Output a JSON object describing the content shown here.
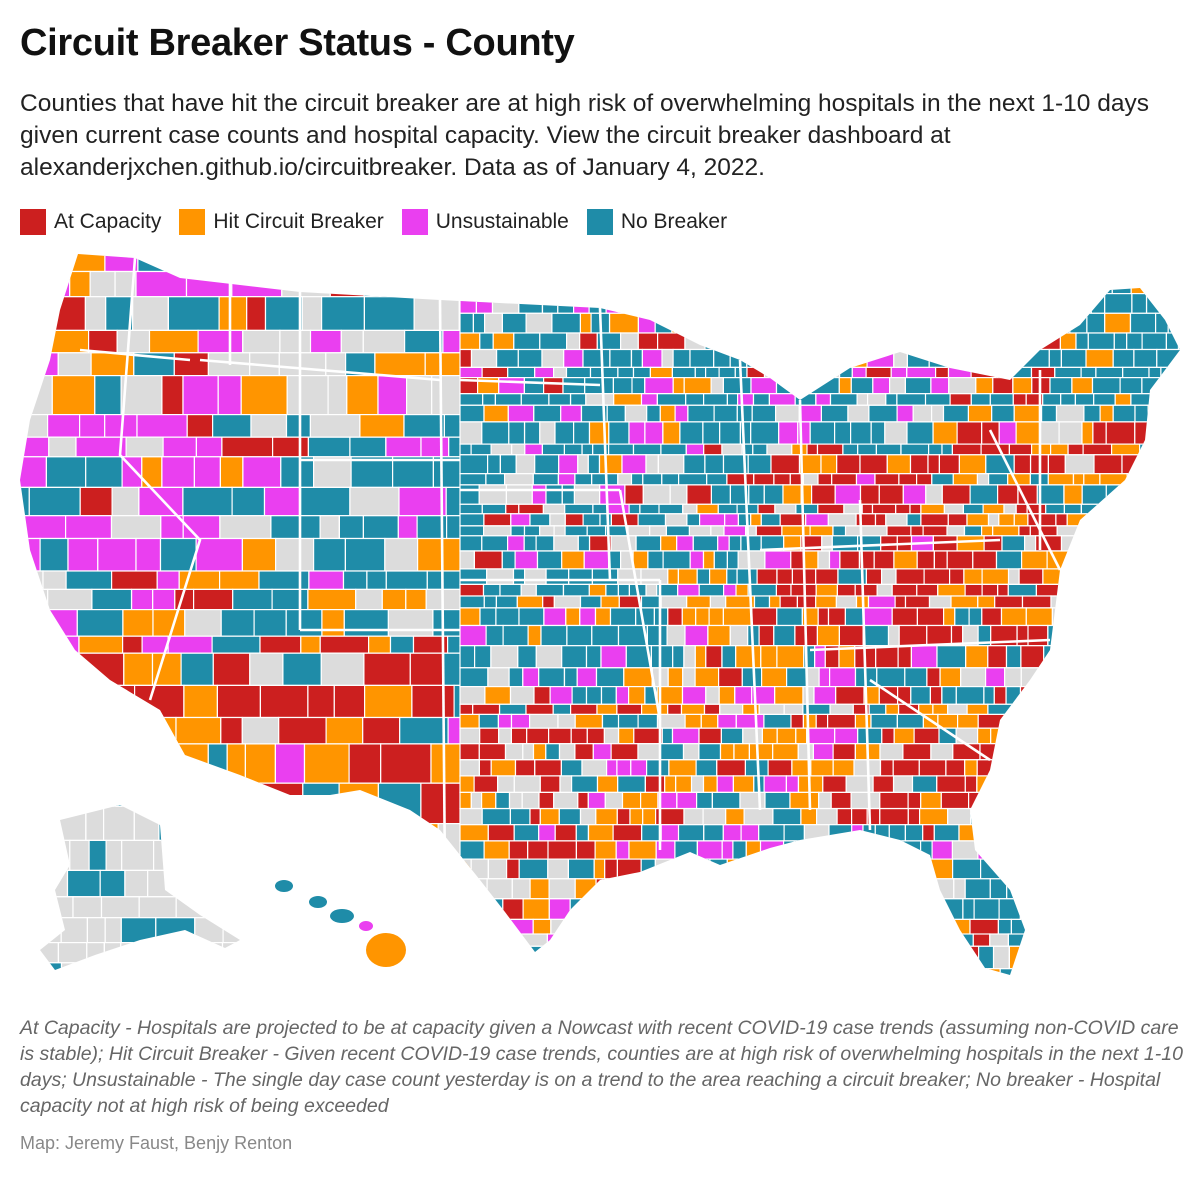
{
  "title": "Circuit Breaker Status - County",
  "subtitle": "Counties that have hit the circuit breaker are at high risk of overwhelming hospitals in the next 1-10 days given current case counts and hospital capacity. View the circuit breaker dashboard at alexanderjxchen.github.io/circuitbreaker. Data as of January 4, 2022.",
  "legend": [
    {
      "label": "At Capacity",
      "color": "#cc1f1f"
    },
    {
      "label": "Hit Circuit Breaker",
      "color": "#ff9500"
    },
    {
      "label": "Unsustainable",
      "color": "#ea3ff0"
    },
    {
      "label": "No Breaker",
      "color": "#1f8ca8"
    }
  ],
  "no_data_color": "#dcdcdc",
  "notes": "At Capacity - Hospitals are projected to be at capacity given a Nowcast with recent COVID-19 case trends (assuming non-COVID care is stable); Hit Circuit Breaker - Given recent COVID-19 case trends, counties are at high risk of overwhelming hospitals in the next 1-10 days; Unsustainable - The single day case count yesterday is on a trend to the area reaching a circuit breaker; No breaker - Hospital capacity not at high risk of being exceeded",
  "credit": "Map: Jeremy Faust, Benjy Renton"
}
